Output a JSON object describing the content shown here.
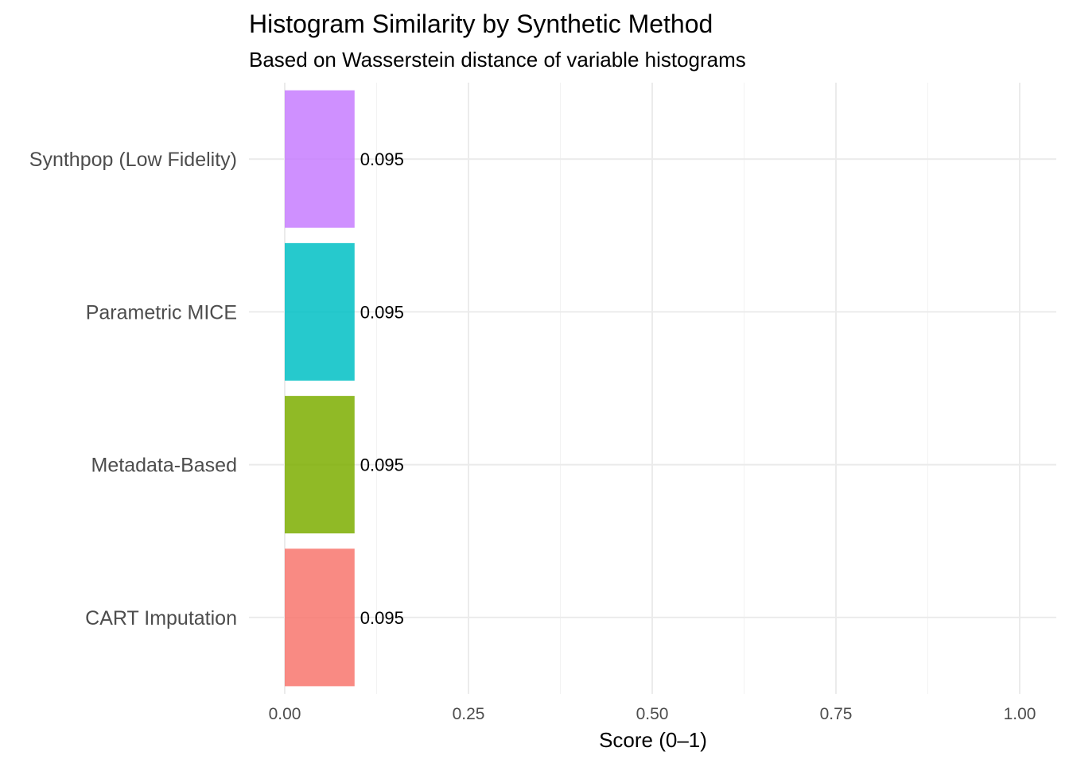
{
  "chart_data": {
    "type": "bar",
    "orientation": "horizontal",
    "title": "Histogram Similarity by Synthetic Method",
    "subtitle": "Based on Wasserstein distance of variable histograms",
    "xlabel": "Score (0–1)",
    "ylabel": "",
    "xlim": [
      0,
      1.05
    ],
    "x_ticks": [
      "0.00",
      "0.25",
      "0.50",
      "0.75",
      "1.00"
    ],
    "x_tick_values": [
      0,
      0.25,
      0.5,
      0.75,
      1.0
    ],
    "grid": true,
    "legend": "none",
    "categories": [
      "Synthpop (Low Fidelity)",
      "Parametric MICE",
      "Metadata-Based",
      "CART Imputation"
    ],
    "values": [
      0.095,
      0.095,
      0.095,
      0.095
    ],
    "data_labels": [
      "0.095",
      "0.095",
      "0.095",
      "0.095"
    ],
    "colors": [
      "#C77CFF",
      "#00BFC4",
      "#7CAE00",
      "#F8766D"
    ]
  }
}
